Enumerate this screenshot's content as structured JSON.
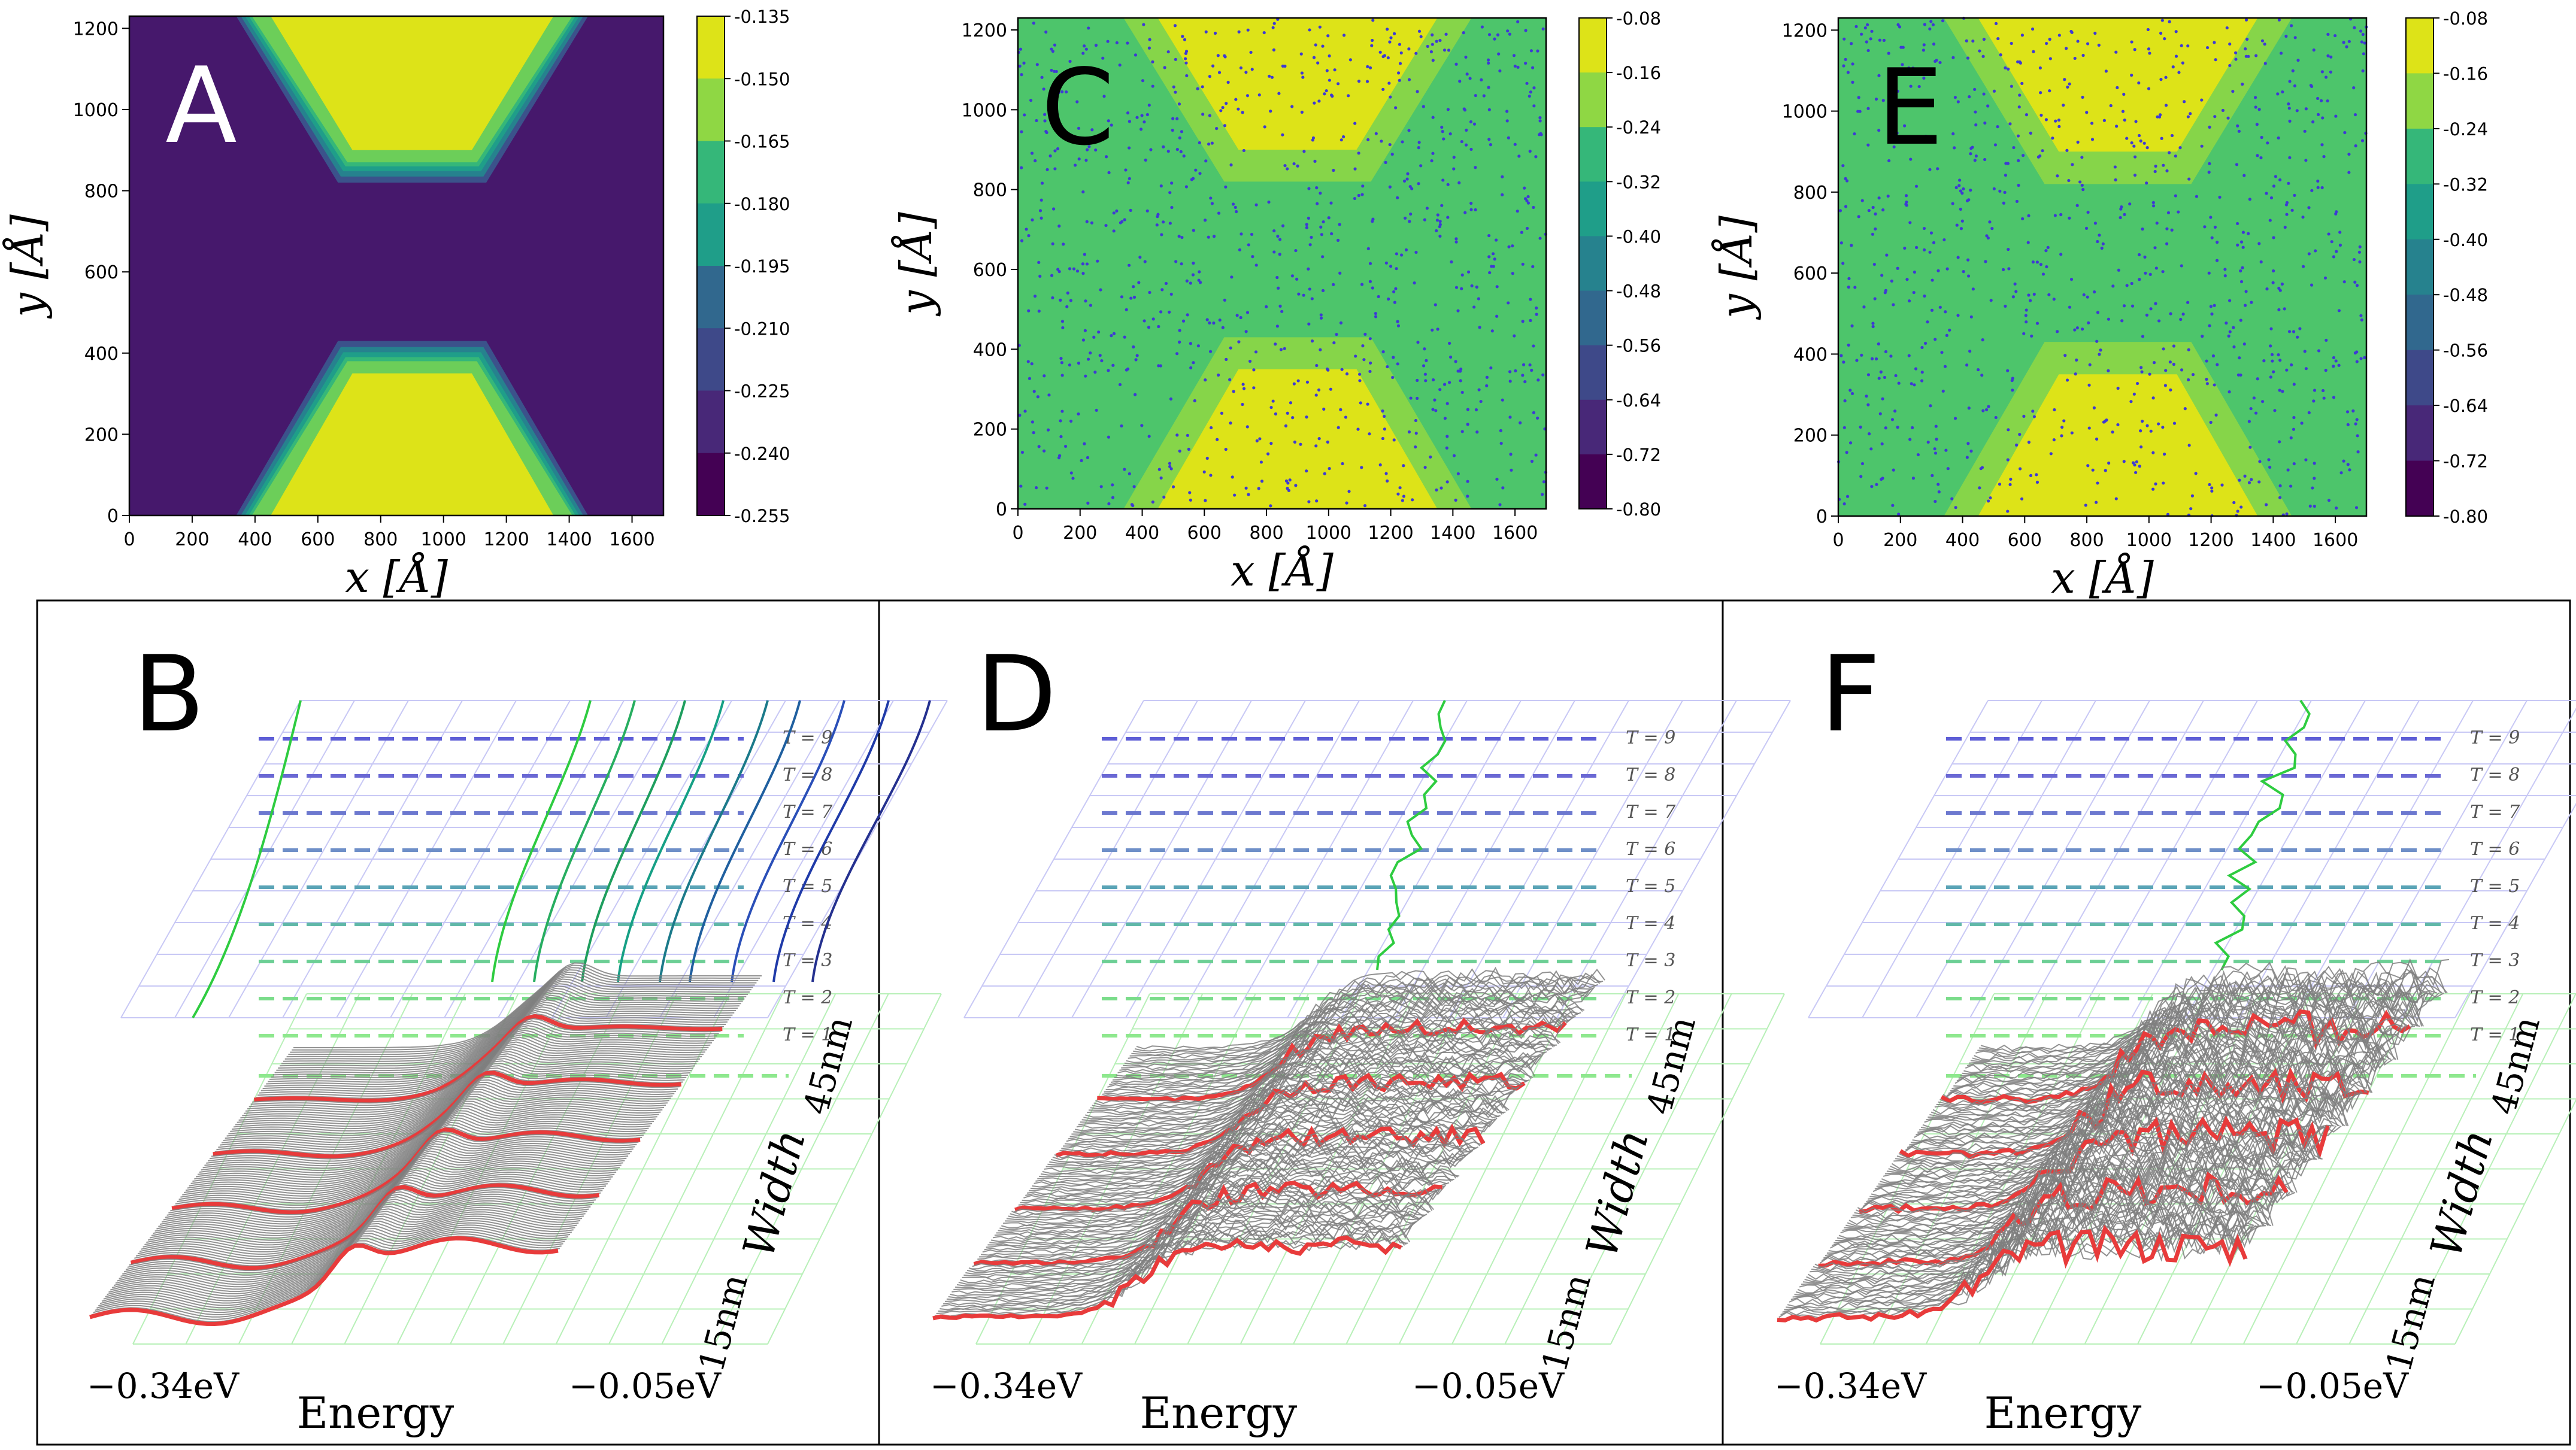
{
  "panels": {
    "A": {
      "letter": "A",
      "cmin": -0.255,
      "cmax": -0.135,
      "cbar_ticks": [
        "-0.135",
        "-0.150",
        "-0.165",
        "-0.180",
        "-0.195",
        "-0.210",
        "-0.225",
        "-0.240",
        "-0.255"
      ],
      "colors": {
        "background": "#46186c",
        "lead": "#dde318"
      }
    },
    "C": {
      "letter": "C",
      "cmin": -0.8,
      "cmax": -0.08,
      "cbar_ticks": [
        "-0.08",
        "-0.16",
        "-0.24",
        "-0.32",
        "-0.40",
        "-0.48",
        "-0.56",
        "-0.64",
        "-0.72",
        "-0.80"
      ],
      "colors": {
        "background": "#4dc56b",
        "lead": "#dde318",
        "dot": "#3e3ad4"
      }
    },
    "E": {
      "letter": "E",
      "cmin": -0.8,
      "cmax": -0.08,
      "cbar_ticks": [
        "-0.08",
        "-0.16",
        "-0.24",
        "-0.32",
        "-0.40",
        "-0.48",
        "-0.56",
        "-0.64",
        "-0.72",
        "-0.80"
      ],
      "colors": {
        "background": "#4dc56b",
        "lead": "#dde318",
        "dot": "#3e3ad4"
      }
    },
    "B": {
      "letter": "B"
    },
    "D": {
      "letter": "D"
    },
    "F": {
      "letter": "F"
    }
  },
  "axes": {
    "x_label": "x [Å]",
    "y_label": "y [Å]",
    "x_ticks": [
      "0",
      "200",
      "400",
      "600",
      "800",
      "1000",
      "1200",
      "1400",
      "1600"
    ],
    "y_ticks": [
      "0",
      "200",
      "400",
      "600",
      "800",
      "1000",
      "1200"
    ],
    "xlim": [
      0,
      1700
    ],
    "ylim": [
      0,
      1230
    ]
  },
  "waterfall": {
    "energy_label": "Energy",
    "energy_min_label": "−0.34eV",
    "energy_max_label": "−0.05eV",
    "width_label": "Width",
    "width_min_label": "15nm",
    "width_max_label": "45nm",
    "t_labels": [
      "T = 1",
      "T = 2",
      "T = 3",
      "T = 4",
      "T = 5",
      "T = 6",
      "T = 7",
      "T = 8",
      "T = 9"
    ]
  },
  "chart_data": [
    {
      "panel": "A",
      "type": "heatmap",
      "title": "",
      "xlabel": "x [Å]",
      "ylabel": "y [Å]",
      "xlim": [
        0,
        1700
      ],
      "ylim": [
        0,
        1230
      ],
      "clim": [
        -0.255,
        -0.135
      ],
      "regions": [
        {
          "name": "top lead",
          "value": -0.135,
          "polygon_data_units": [
            [
              400,
              1230
            ],
            [
              1400,
              1230
            ],
            [
              1100,
              880
            ],
            [
              700,
              880
            ]
          ]
        },
        {
          "name": "bottom lead",
          "value": -0.135,
          "polygon_data_units": [
            [
              400,
              0
            ],
            [
              1400,
              0
            ],
            [
              1100,
              370
            ],
            [
              700,
              370
            ]
          ]
        },
        {
          "name": "background",
          "value": -0.255
        }
      ]
    },
    {
      "panel": "C",
      "type": "heatmap",
      "xlabel": "x [Å]",
      "ylabel": "y [Å]",
      "xlim": [
        0,
        1700
      ],
      "ylim": [
        0,
        1230
      ],
      "clim": [
        -0.8,
        -0.08
      ],
      "note": "same geometry as A with scattered impurity dots (~-0.64)"
    },
    {
      "panel": "E",
      "type": "heatmap",
      "xlabel": "x [Å]",
      "ylabel": "y [Å]",
      "xlim": [
        0,
        1700
      ],
      "ylim": [
        0,
        1230
      ],
      "clim": [
        -0.8,
        -0.08
      ],
      "note": "same geometry as A with scattered impurity dots (~-0.64)"
    },
    {
      "panel": "B",
      "type": "line",
      "xlabel": "Energy",
      "ylabel": "Width",
      "xlim": [
        -0.34,
        -0.05
      ],
      "ylim": [
        15,
        45
      ],
      "series_count": 6,
      "description": "3D waterfall of transmission vs energy for widths 15-45nm, smooth step"
    },
    {
      "panel": "D",
      "type": "line",
      "xlabel": "Energy",
      "ylabel": "Width",
      "xlim": [
        -0.34,
        -0.05
      ],
      "ylim": [
        15,
        45
      ],
      "series_count": 6,
      "description": "3D waterfall, disordered (noisy) step"
    },
    {
      "panel": "F",
      "type": "line",
      "xlabel": "Energy",
      "ylabel": "Width",
      "xlim": [
        -0.34,
        -0.05
      ],
      "ylim": [
        15,
        45
      ],
      "series_count": 6,
      "description": "3D waterfall, strongly disordered step"
    }
  ]
}
